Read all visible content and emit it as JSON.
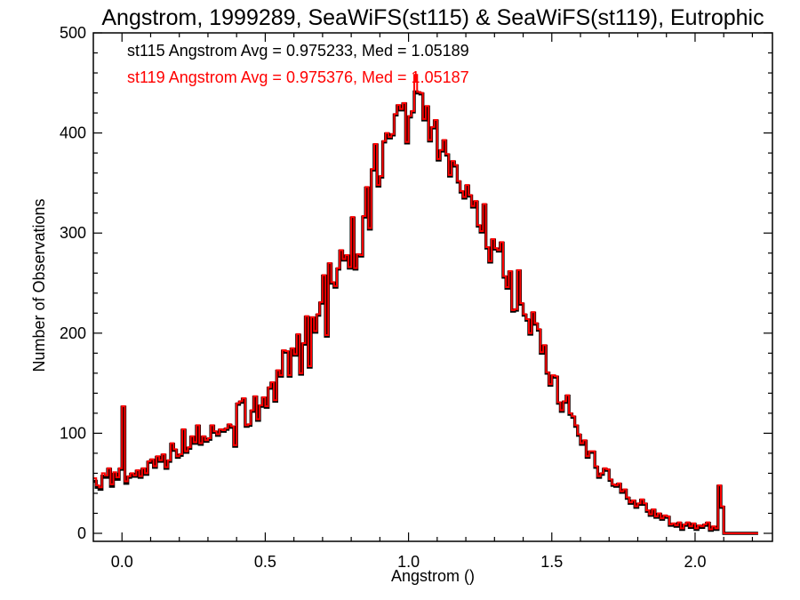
{
  "chart_data": {
    "type": "histogram",
    "title": "Angstrom, 1999289, SeaWiFS(st115) & SeaWiFS(st119), Eutrophic",
    "xlabel": "Angstrom ()",
    "ylabel": "Number of Observations",
    "xlim": [
      -0.1,
      2.27
    ],
    "ylim": [
      -8,
      500
    ],
    "xticks": [
      0.0,
      0.5,
      1.0,
      1.5,
      2.0
    ],
    "xtick_labels": [
      "0.0",
      "0.5",
      "1.0",
      "1.5",
      "2.0"
    ],
    "yticks": [
      0,
      100,
      200,
      300,
      400,
      500
    ],
    "ytick_labels": [
      "0",
      "100",
      "200",
      "300",
      "400",
      "500"
    ],
    "bin_width": 0.01,
    "x_start": -0.1,
    "legend": [
      {
        "text": "st115 Angstrom Avg = 0.975233, Med = 1.05189",
        "color": "#000000"
      },
      {
        "text": "st119 Angstrom Avg = 0.975376, Med = 1.05187",
        "color": "#ff0000"
      }
    ],
    "series": [
      {
        "name": "st115",
        "color": "#000000",
        "values": [
          52,
          46,
          44,
          57,
          56,
          64,
          47,
          59,
          54,
          64,
          126,
          50,
          56,
          59,
          57,
          62,
          56,
          64,
          59,
          71,
          73,
          66,
          76,
          72,
          78,
          65,
          72,
          89,
          83,
          76,
          78,
          103,
          81,
          85,
          96,
          90,
          107,
          89,
          96,
          92,
          94,
          107,
          101,
          98,
          103,
          102,
          104,
          108,
          106,
          87,
          129,
          131,
          134,
          107,
          108,
          122,
          136,
          113,
          127,
          135,
          126,
          145,
          150,
          132,
          162,
          157,
          182,
          181,
          157,
          184,
          178,
          198,
          159,
          189,
          216,
          166,
          215,
          201,
          218,
          230,
          257,
          197,
          269,
          250,
          246,
          264,
          282,
          273,
          277,
          265,
          315,
          264,
          278,
          277,
          316,
          345,
          304,
          363,
          388,
          347,
          356,
          391,
          399,
          395,
          398,
          418,
          427,
          423,
          429,
          390,
          416,
          421,
          441,
          440,
          439,
          413,
          426,
          392,
          405,
          412,
          373,
          382,
          392,
          378,
          357,
          371,
          367,
          351,
          341,
          335,
          347,
          337,
          326,
          331,
          307,
          301,
          328,
          285,
          271,
          293,
          284,
          282,
          290,
          256,
          245,
          261,
          222,
          223,
          262,
          229,
          218,
          213,
          199,
          220,
          209,
          203,
          180,
          187,
          160,
          148,
          157,
          156,
          130,
          122,
          131,
          137,
          119,
          116,
          107,
          98,
          89,
          92,
          76,
          81,
          81,
          66,
          56,
          59,
          64,
          63,
          53,
          48,
          47,
          49,
          41,
          43,
          35,
          30,
          32,
          26,
          29,
          33,
          29,
          22,
          18,
          23,
          16,
          19,
          14,
          17,
          16,
          8,
          9,
          7,
          10,
          4,
          8,
          10,
          6,
          9,
          4,
          7,
          6,
          8,
          10,
          3,
          6,
          4,
          47,
          26,
          0,
          0,
          0,
          0,
          0,
          0,
          0,
          0,
          0,
          0,
          0,
          0
        ]
      },
      {
        "name": "st119",
        "color": "#ff0000",
        "values": [
          55,
          48,
          46,
          60,
          58,
          65,
          49,
          61,
          56,
          65,
          127,
          52,
          57,
          60,
          58,
          63,
          57,
          65,
          60,
          72,
          74,
          67,
          77,
          73,
          79,
          66,
          73,
          90,
          84,
          77,
          79,
          104,
          82,
          86,
          97,
          91,
          108,
          90,
          97,
          93,
          95,
          108,
          102,
          99,
          104,
          103,
          105,
          109,
          107,
          88,
          130,
          132,
          135,
          108,
          109,
          123,
          137,
          114,
          128,
          136,
          127,
          146,
          151,
          133,
          163,
          158,
          183,
          182,
          158,
          185,
          179,
          199,
          160,
          190,
          217,
          167,
          216,
          202,
          219,
          231,
          258,
          198,
          270,
          251,
          247,
          265,
          283,
          274,
          278,
          266,
          316,
          265,
          279,
          278,
          317,
          346,
          305,
          364,
          389,
          348,
          357,
          392,
          400,
          396,
          399,
          419,
          428,
          424,
          430,
          391,
          417,
          422,
          458,
          441,
          440,
          414,
          427,
          393,
          406,
          413,
          374,
          383,
          393,
          379,
          358,
          372,
          368,
          352,
          342,
          336,
          348,
          338,
          327,
          332,
          308,
          302,
          329,
          286,
          272,
          294,
          285,
          283,
          291,
          257,
          246,
          262,
          223,
          224,
          263,
          230,
          219,
          214,
          200,
          221,
          210,
          204,
          181,
          188,
          161,
          149,
          158,
          157,
          131,
          123,
          132,
          138,
          120,
          117,
          108,
          99,
          90,
          93,
          77,
          82,
          82,
          67,
          57,
          60,
          65,
          64,
          54,
          49,
          48,
          50,
          42,
          44,
          36,
          31,
          33,
          27,
          30,
          34,
          30,
          23,
          19,
          24,
          17,
          20,
          15,
          18,
          17,
          9,
          10,
          8,
          11,
          5,
          9,
          11,
          7,
          10,
          5,
          8,
          7,
          9,
          11,
          4,
          7,
          5,
          48,
          27,
          0,
          0,
          0,
          0,
          0,
          0,
          0,
          0,
          0,
          0,
          0,
          0
        ]
      }
    ]
  }
}
